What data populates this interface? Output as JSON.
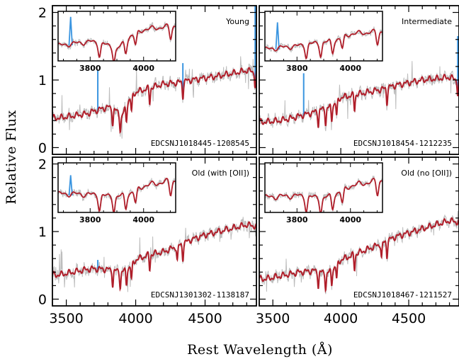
{
  "figure": {
    "xlabel": "Rest Wavelength (Å)",
    "ylabel": "Relative Flux"
  },
  "colors": {
    "observed": "#bdbdbd",
    "model": "#b01e2a",
    "emission": "#3a95e0"
  },
  "chart_data": [
    {
      "type": "line",
      "panel": "top-left",
      "label": "Young",
      "object": "EDCSNJ1018445-1208545",
      "xlim": [
        3400,
        4870
      ],
      "ylim": [
        -0.1,
        2.1
      ],
      "xticks": [
        3500,
        4000,
        4500
      ],
      "yticks": [
        0,
        1,
        2
      ],
      "x": [
        3450,
        3550,
        3650,
        3700,
        3800,
        3850,
        3900,
        3950,
        4000,
        4100,
        4200,
        4300,
        4400,
        4500,
        4600,
        4700,
        4800,
        4860
      ],
      "series": [
        {
          "values": [
            0.44,
            0.47,
            0.5,
            0.54,
            0.6,
            0.56,
            0.46,
            0.7,
            0.82,
            0.88,
            0.94,
            0.96,
            1.0,
            1.03,
            1.06,
            1.1,
            1.14,
            1.12
          ]
        }
      ],
      "absorption_lines": [
        3835,
        3889,
        3933,
        3970,
        4101,
        4340,
        4861
      ],
      "emission_lines": [
        {
          "x": 3727,
          "peak": 1.15
        },
        {
          "x": 4340,
          "peak": 1.25
        },
        {
          "x": 4861,
          "peak": 2.1
        }
      ],
      "inset": {
        "xlim": [
          3680,
          4120
        ],
        "ylim": [
          0.25,
          1.15
        ],
        "xticks": [
          3800,
          4000
        ],
        "emission_peak": 1.05
      }
    },
    {
      "type": "line",
      "panel": "top-right",
      "label": "Intermediate",
      "object": "EDCSNJ1018454-1212235",
      "xlim": [
        3400,
        4870
      ],
      "ylim": [
        -0.1,
        2.1
      ],
      "xticks": [
        3500,
        4000,
        4500
      ],
      "yticks": [
        0,
        1,
        2
      ],
      "x": [
        3450,
        3550,
        3650,
        3700,
        3800,
        3850,
        3900,
        3950,
        4000,
        4100,
        4200,
        4300,
        4400,
        4500,
        4600,
        4700,
        4800,
        4860
      ],
      "series": [
        {
          "values": [
            0.38,
            0.4,
            0.44,
            0.47,
            0.52,
            0.56,
            0.58,
            0.64,
            0.74,
            0.78,
            0.82,
            0.86,
            0.92,
            0.96,
            1.0,
            1.02,
            1.04,
            1.0
          ]
        }
      ],
      "absorption_lines": [
        3835,
        3889,
        3933,
        3970,
        4101,
        4340,
        4861
      ],
      "emission_lines": [
        {
          "x": 3727,
          "peak": 1.1
        },
        {
          "x": 4861,
          "peak": 1.65
        }
      ],
      "inset": {
        "xlim": [
          3680,
          4120
        ],
        "ylim": [
          0.25,
          1.15
        ],
        "xticks": [
          3800,
          4000
        ],
        "emission_peak": 0.95
      }
    },
    {
      "type": "line",
      "panel": "bottom-left",
      "label": "Old (with [OII])",
      "object": "EDCSNJ1301302-1138187",
      "xlim": [
        3400,
        4870
      ],
      "ylim": [
        -0.1,
        2.1
      ],
      "xticks": [
        3500,
        4000,
        4500
      ],
      "yticks": [
        0,
        1,
        2
      ],
      "x": [
        3450,
        3550,
        3650,
        3700,
        3800,
        3850,
        3900,
        3950,
        4000,
        4100,
        4200,
        4300,
        4400,
        4500,
        4600,
        4700,
        4800,
        4860
      ],
      "series": [
        {
          "values": [
            0.36,
            0.4,
            0.44,
            0.45,
            0.44,
            0.42,
            0.4,
            0.46,
            0.58,
            0.66,
            0.7,
            0.78,
            0.88,
            0.95,
            1.0,
            1.05,
            1.1,
            1.08
          ]
        }
      ],
      "absorption_lines": [
        3835,
        3889,
        3933,
        3970,
        4101,
        4300,
        4340
      ],
      "emission_lines": [
        {
          "x": 3727,
          "peak": 0.58
        }
      ],
      "inset": {
        "xlim": [
          3680,
          4120
        ],
        "ylim": [
          0.15,
          0.95
        ],
        "xticks": [
          3800,
          4000
        ],
        "emission_peak": 0.75
      }
    },
    {
      "type": "line",
      "panel": "bottom-right",
      "label": "Old (no [OII])",
      "object": "EDCSNJ1018467-1211527",
      "xlim": [
        3400,
        4870
      ],
      "ylim": [
        -0.1,
        2.1
      ],
      "xticks": [
        3500,
        4000,
        4500
      ],
      "yticks": [
        0,
        1,
        2
      ],
      "x": [
        3450,
        3550,
        3650,
        3700,
        3800,
        3850,
        3900,
        3950,
        4000,
        4100,
        4200,
        4300,
        4400,
        4500,
        4600,
        4700,
        4800,
        4860
      ],
      "series": [
        {
          "values": [
            0.3,
            0.34,
            0.38,
            0.4,
            0.42,
            0.4,
            0.38,
            0.46,
            0.58,
            0.66,
            0.74,
            0.82,
            0.92,
            0.98,
            1.04,
            1.1,
            1.16,
            1.14
          ]
        }
      ],
      "absorption_lines": [
        3835,
        3889,
        3933,
        3970,
        4101,
        4300,
        4340
      ],
      "emission_lines": [],
      "inset": {
        "xlim": [
          3680,
          4120
        ],
        "ylim": [
          0.15,
          0.95
        ],
        "xticks": [
          3800,
          4000
        ],
        "emission_peak": null
      }
    }
  ]
}
